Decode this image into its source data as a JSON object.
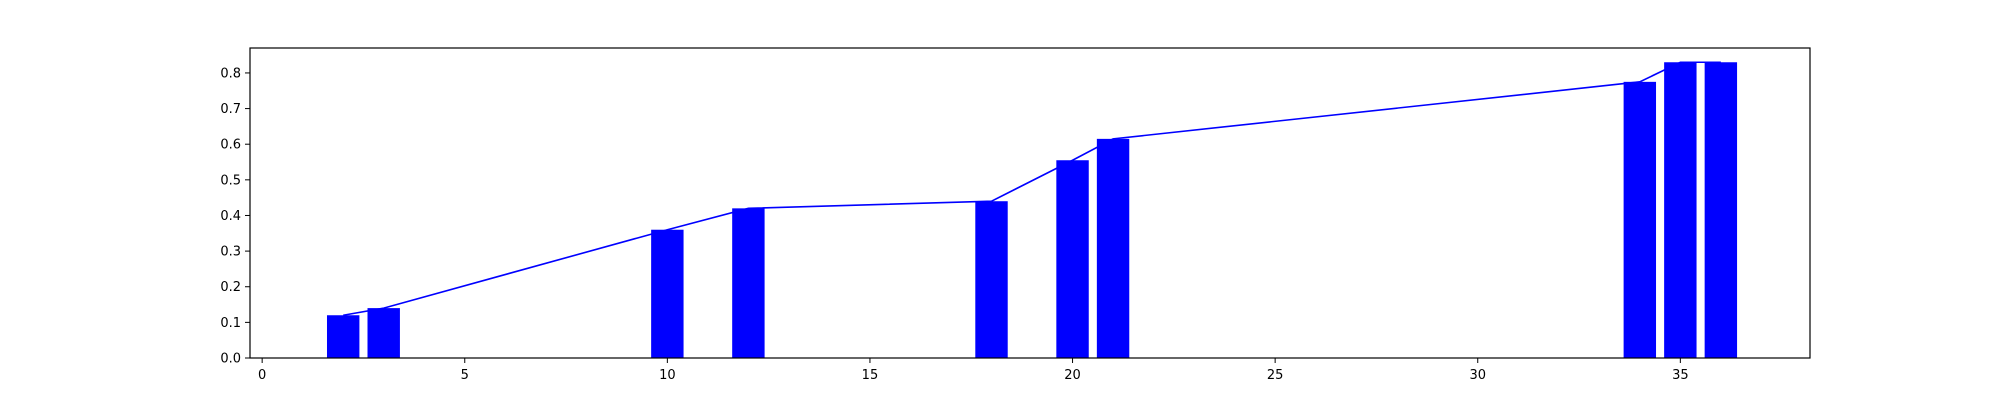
{
  "chart_data": {
    "type": "bar",
    "title": "",
    "xlabel": "",
    "ylabel": "",
    "xlim": [
      -0.3,
      38.2
    ],
    "ylim": [
      0.0,
      0.87
    ],
    "grid": false,
    "legend": "none",
    "bar_color": "#0000ff",
    "line_color": "#0000ff",
    "bar_width": 0.8,
    "x": [
      2,
      3,
      10,
      12,
      18,
      20,
      21,
      34,
      35,
      36
    ],
    "values": [
      0.12,
      0.14,
      0.36,
      0.42,
      0.44,
      0.555,
      0.615,
      0.775,
      0.83,
      0.83
    ],
    "line_points": {
      "x": [
        2,
        3,
        10,
        12,
        18,
        20,
        21,
        34,
        35,
        36
      ],
      "y": [
        0.12,
        0.14,
        0.36,
        0.42,
        0.44,
        0.555,
        0.615,
        0.775,
        0.83,
        0.83
      ]
    },
    "x_ticks": [
      0,
      5,
      10,
      15,
      20,
      25,
      30,
      35
    ],
    "x_tick_labels": [
      "0",
      "5",
      "10",
      "15",
      "20",
      "25",
      "30",
      "35"
    ],
    "y_ticks": [
      0.0,
      0.1,
      0.2,
      0.3,
      0.4,
      0.5,
      0.6,
      0.7,
      0.8
    ],
    "y_tick_labels": [
      "0.0",
      "0.1",
      "0.2",
      "0.3",
      "0.4",
      "0.5",
      "0.6",
      "0.7",
      "0.8"
    ]
  }
}
